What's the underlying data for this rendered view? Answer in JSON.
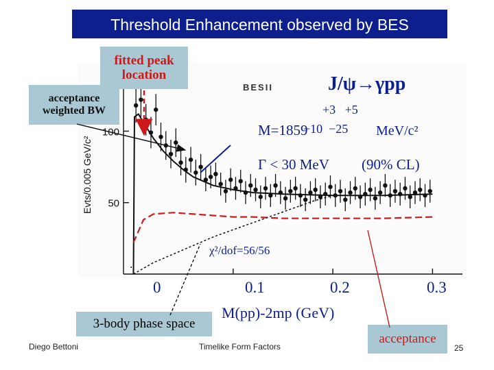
{
  "slide": {
    "title": "Threshold Enhancement observed by BES",
    "footer_left": "Diego Bettoni",
    "footer_center": "Timelike Form Factors",
    "page_number": "25"
  },
  "callouts": {
    "fitted_peak_line1": "fitted peak",
    "fitted_peak_line2": "location",
    "acceptance_bw_line1": "acceptance",
    "acceptance_bw_line2": "weighted BW",
    "phase_space": "3-body phase space",
    "acceptance": "acceptance"
  },
  "annotations": {
    "reaction": "J/ψ→γpp",
    "mass_exp_plus": "+3   +5",
    "mass_line": "M=1859",
    "mass_exp_minus": "−10  −25",
    "mass_unit": "MeV/c²",
    "width_line": "Γ < 30 MeV",
    "cl": "(90% CL)",
    "chi2": "χ²/dof=56/56",
    "logo": "BESII",
    "x_title": "M(pp)-2mp (GeV)"
  },
  "chart_data": {
    "type": "scatter",
    "title": "J/ψ→γpp",
    "xlabel": "M(pp)-2mp (GeV)",
    "ylabel": "Evts/0.005 GeV/c²",
    "xlim": [
      -0.01,
      0.33
    ],
    "ylim": [
      0,
      140
    ],
    "x_ticks": [
      "0",
      "0.1",
      "0.2",
      "0.3"
    ],
    "y_ticks": [
      "50",
      "100"
    ],
    "y_tick_values": [
      50,
      100
    ],
    "x_tick_values": [
      0,
      0.1,
      0.2,
      0.3
    ],
    "series": [
      {
        "kind": "data",
        "x": [
          0.0025,
          0.0075,
          0.0125,
          0.0175,
          0.0225,
          0.0275,
          0.0325,
          0.0375,
          0.0425,
          0.0475,
          0.0525,
          0.0575,
          0.0625,
          0.0675,
          0.0725,
          0.0775,
          0.0825,
          0.0875,
          0.0925,
          0.0975,
          0.1025,
          0.1075,
          0.1125,
          0.1175,
          0.1225,
          0.1275,
          0.1325,
          0.1375,
          0.1425,
          0.1475,
          0.1525,
          0.1575,
          0.1625,
          0.1675,
          0.1725,
          0.1775,
          0.1825,
          0.1875,
          0.1925,
          0.1975,
          0.2025,
          0.2075,
          0.2125,
          0.2175,
          0.2225,
          0.2275,
          0.2325,
          0.2375,
          0.2425,
          0.2475,
          0.2525,
          0.2575,
          0.2625,
          0.2675,
          0.2725,
          0.2775,
          0.2825,
          0.2875,
          0.2925,
          0.2975
        ],
        "y": [
          118,
          122,
          108,
          99,
          115,
          96,
          90,
          84,
          92,
          78,
          73,
          80,
          71,
          75,
          66,
          68,
          70,
          63,
          58,
          66,
          60,
          65,
          57,
          62,
          59,
          54,
          60,
          55,
          62,
          57,
          53,
          58,
          60,
          55,
          52,
          57,
          59,
          54,
          56,
          61,
          55,
          58,
          52,
          57,
          60,
          54,
          56,
          59,
          53,
          57,
          62,
          55,
          58,
          56,
          60,
          54,
          57,
          59,
          55,
          58
        ],
        "err": [
          12,
          12,
          11,
          11,
          11,
          10,
          10,
          10,
          10,
          9,
          9,
          9,
          9,
          9,
          8,
          8,
          8,
          8,
          8,
          8,
          8,
          8,
          8,
          8,
          8,
          8,
          8,
          8,
          8,
          8,
          8,
          8,
          8,
          8,
          8,
          8,
          8,
          8,
          8,
          8,
          8,
          8,
          8,
          8,
          8,
          8,
          8,
          8,
          8,
          8,
          8,
          8,
          8,
          8,
          8,
          8,
          8,
          8,
          8,
          8
        ]
      },
      {
        "kind": "fit",
        "x": [
          0.001,
          0.005,
          0.01,
          0.02,
          0.03,
          0.04,
          0.05,
          0.06,
          0.08,
          0.1,
          0.12,
          0.15,
          0.2,
          0.25,
          0.3
        ],
        "y": [
          110,
          112,
          106,
          95,
          86,
          79,
          73,
          68,
          62,
          59,
          57,
          56,
          55,
          55,
          56
        ]
      },
      {
        "kind": "acceptance",
        "x": [
          0.0,
          0.01,
          0.02,
          0.04,
          0.06,
          0.08,
          0.1,
          0.12,
          0.15,
          0.2,
          0.25,
          0.3
        ],
        "y": [
          22,
          38,
          42,
          43,
          42,
          41,
          40,
          40,
          39,
          39,
          39,
          40
        ]
      },
      {
        "kind": "phase_space",
        "x": [
          0.0,
          0.02,
          0.04,
          0.06,
          0.08,
          0.1,
          0.12,
          0.14,
          0.16,
          0.18,
          0.2
        ],
        "y": [
          0,
          8,
          14,
          20,
          26,
          31,
          36,
          41,
          46,
          51,
          55
        ]
      }
    ]
  }
}
